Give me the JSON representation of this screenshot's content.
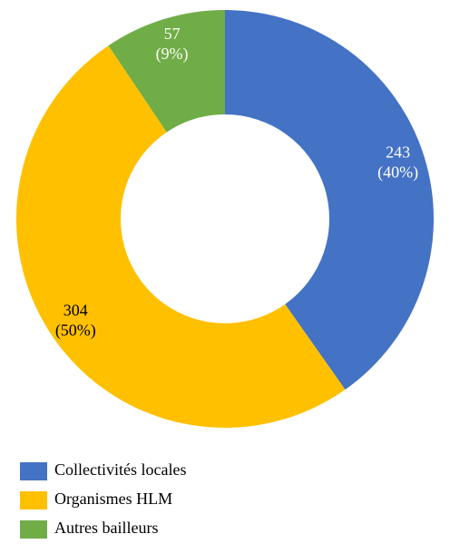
{
  "chart_data": {
    "type": "donut",
    "categories": [
      "Collectivités locales",
      "Organismes HLM",
      "Autres bailleurs"
    ],
    "values": [
      243,
      304,
      57
    ],
    "percent_labels": [
      "(40%)",
      "(50%)",
      "(9%)"
    ],
    "colors": [
      "#4472c4",
      "#ffc000",
      "#70ad47"
    ],
    "label_colors": [
      "#ffffff",
      "#000000",
      "#ffffff"
    ],
    "legend": "bottom"
  }
}
